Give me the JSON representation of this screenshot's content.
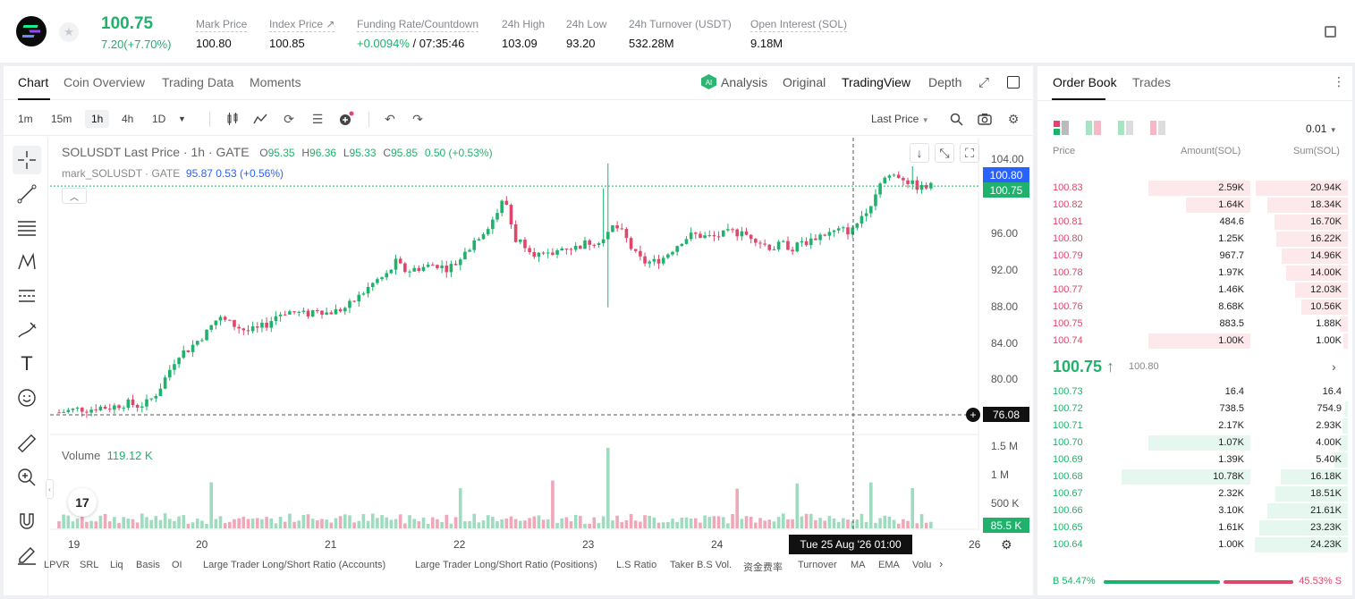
{
  "header": {
    "price": "100.75",
    "change": "7.20(+7.70%)",
    "stats": [
      {
        "label": "Mark Price",
        "value": "100.80"
      },
      {
        "label": "Index Price ↗",
        "value": "100.85"
      },
      {
        "label": "Funding Rate/Countdown",
        "value_green": "+0.0094%",
        "value": " / 07:35:46"
      },
      {
        "label": "24h High",
        "value": "103.09"
      },
      {
        "label": "24h Low",
        "value": "93.20"
      },
      {
        "label": "24h Turnover (USDT)",
        "value": "532.28M"
      },
      {
        "label": "Open Interest (SOL)",
        "value": "9.18M"
      }
    ]
  },
  "tabs": {
    "left": [
      "Chart",
      "Coin Overview",
      "Trading Data",
      "Moments"
    ],
    "right": [
      "Analysis",
      "Original",
      "TradingView",
      "Depth"
    ]
  },
  "timeframes": [
    "1m",
    "15m",
    "1h",
    "4h",
    "1D"
  ],
  "price_type": "Last Price",
  "legend": {
    "symbol": "SOLUSDT Last Price · 1h · GATE",
    "o_lbl": "O",
    "o": "95.35",
    "h_lbl": "H",
    "h": "96.36",
    "l_lbl": "L",
    "l": "95.33",
    "c_lbl": "C",
    "c": "95.85",
    "chg": "0.50 (+0.53%)",
    "mark_name": "mark_SOLUSDT · GATE",
    "mark_vals": "95.87  0.53  (+0.56%)"
  },
  "yaxis_ticks": [
    "104.00",
    "96.00",
    "92.00",
    "88.00",
    "84.00",
    "80.00"
  ],
  "price_tags": {
    "mark": "100.80",
    "last": "100.75",
    "cross": "76.08",
    "vol": "85.5 K"
  },
  "vol_ticks": [
    "1.5 M",
    "1 M",
    "500 K"
  ],
  "volume": {
    "label": "Volume",
    "value": "119.12 K"
  },
  "xaxis_ticks": [
    "19",
    "20",
    "21",
    "22",
    "23",
    "24",
    "26"
  ],
  "crosshair_time": "Tue 25 Aug '26   01:00",
  "indicators": [
    "LPVR",
    "SRL",
    "Liq",
    "Basis",
    "OI",
    "Large Trader Long/Short Ratio (Accounts)",
    "Large Trader Long/Short Ratio (Positions)",
    "L.S Ratio",
    "Taker B.S Vol.",
    "资金费率",
    "Turnover",
    "MA",
    "EMA",
    "Volu"
  ],
  "chart_data": {
    "type": "candlestick",
    "title": "SOLUSDT Last Price · 1h · GATE",
    "xlabel": "",
    "ylabel": "",
    "x_categories": [
      "19",
      "20",
      "21",
      "22",
      "23",
      "24",
      "25",
      "26"
    ],
    "ylim": [
      74,
      106
    ],
    "series": [
      {
        "name": "SOLUSDT Last Price",
        "close_path": [
          76.2,
          76.4,
          76.6,
          76.5,
          76.8,
          76.7,
          77.0,
          77.2,
          76.9,
          77.3,
          78.5,
          80.5,
          82.5,
          83.0,
          84.0,
          85.0,
          86.5,
          86.0,
          85.5,
          85.0,
          85.2,
          85.8,
          86.8,
          87.2,
          87.0,
          86.8,
          87.5,
          87.0,
          87.2,
          87.6,
          88.5,
          89.5,
          90.5,
          91.0,
          92.5,
          91.5,
          91.8,
          92.0,
          92.3,
          91.8,
          92.3,
          93.5,
          95.0,
          96.0,
          97.5,
          99.5,
          95.0,
          94.5,
          93.5,
          93.0,
          93.5,
          94.2,
          94.0,
          94.5,
          94.8,
          95.0,
          96.5,
          95.5,
          93.5,
          92.5,
          92.5,
          93.0,
          94.0,
          95.0,
          95.5,
          95.3,
          95.2,
          95.5,
          95.8,
          95.5,
          95.3,
          94.5,
          94.0,
          94.5,
          94.0,
          94.5,
          95.0,
          95.5,
          95.7,
          96.0,
          95.8,
          97.5,
          99.0,
          101.5,
          102.0,
          101.8,
          101.0,
          100.5,
          100.75
        ]
      },
      {
        "name": "Volume",
        "unit": "SOL",
        "last": "119.12 K"
      }
    ]
  },
  "orderbook": {
    "tabs": [
      "Order Book",
      "Trades"
    ],
    "precision": "0.01",
    "headers": [
      "Price",
      "Amount(SOL)",
      "Sum(SOL)"
    ],
    "asks": [
      {
        "p": "100.83",
        "a": "2.59K",
        "s": "20.94K",
        "aw": 0.3,
        "sw": 0.99
      },
      {
        "p": "100.82",
        "a": "1.64K",
        "s": "18.34K",
        "aw": 0.19,
        "sw": 0.87
      },
      {
        "p": "100.81",
        "a": "484.6",
        "s": "16.70K",
        "aw": 0.0,
        "sw": 0.79
      },
      {
        "p": "100.80",
        "a": "1.25K",
        "s": "16.22K",
        "aw": 0.0,
        "sw": 0.77
      },
      {
        "p": "100.79",
        "a": "967.7",
        "s": "14.96K",
        "aw": 0.0,
        "sw": 0.71
      },
      {
        "p": "100.78",
        "a": "1.97K",
        "s": "14.00K",
        "aw": 0.0,
        "sw": 0.66
      },
      {
        "p": "100.77",
        "a": "1.46K",
        "s": "12.03K",
        "aw": 0.0,
        "sw": 0.57
      },
      {
        "p": "100.76",
        "a": "8.68K",
        "s": "10.56K",
        "aw": 0.0,
        "sw": 0.5
      },
      {
        "p": "100.75",
        "a": "883.5",
        "s": "1.88K",
        "aw": 0.0,
        "sw": 0.09
      },
      {
        "p": "100.74",
        "a": "1.00K",
        "s": "1.00K",
        "aw": 0.3,
        "sw": 0.05
      }
    ],
    "mid": {
      "price": "100.75 ↑",
      "mark": "100.80"
    },
    "bids": [
      {
        "p": "100.73",
        "a": "16.4",
        "s": "16.4",
        "aw": 0.0,
        "sw": 0.0
      },
      {
        "p": "100.72",
        "a": "738.5",
        "s": "754.9",
        "aw": 0.0,
        "sw": 0.03
      },
      {
        "p": "100.71",
        "a": "2.17K",
        "s": "2.93K",
        "aw": 0.0,
        "sw": 0.06
      },
      {
        "p": "100.70",
        "a": "1.07K",
        "s": "4.00K",
        "aw": 0.3,
        "sw": 0.09
      },
      {
        "p": "100.69",
        "a": "1.39K",
        "s": "5.40K",
        "aw": 0.0,
        "sw": 0.14
      },
      {
        "p": "100.68",
        "a": "10.78K",
        "s": "16.18K",
        "aw": 0.38,
        "sw": 0.72
      },
      {
        "p": "100.67",
        "a": "2.32K",
        "s": "18.51K",
        "aw": 0.0,
        "sw": 0.78
      },
      {
        "p": "100.66",
        "a": "3.10K",
        "s": "21.61K",
        "aw": 0.0,
        "sw": 0.87
      },
      {
        "p": "100.65",
        "a": "1.61K",
        "s": "23.23K",
        "aw": 0.0,
        "sw": 0.95
      },
      {
        "p": "100.64",
        "a": "1.00K",
        "s": "24.23K",
        "aw": 0.0,
        "sw": 1.0
      }
    ],
    "buy_ratio": "B 54.47%",
    "sell_ratio": "45.53% S"
  },
  "colors": {
    "up": "#20b26c",
    "down": "#e0466a",
    "up_bar": "#e6f7ef",
    "down_bar": "#fde9ec"
  }
}
